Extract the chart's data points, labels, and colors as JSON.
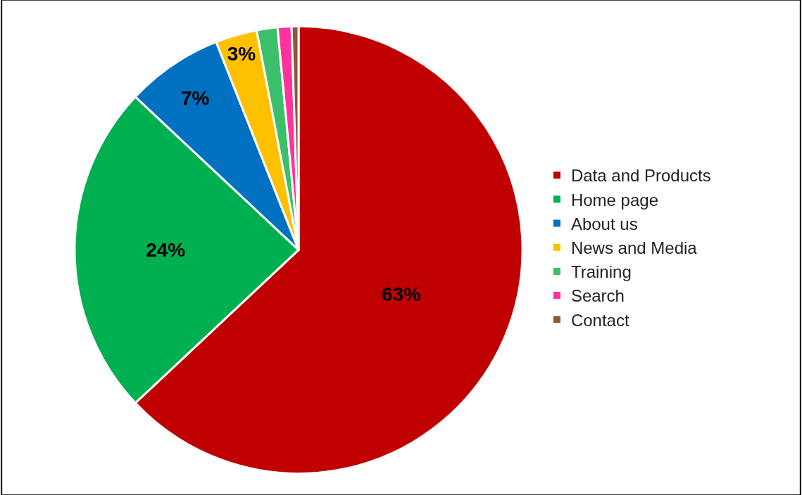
{
  "chart_data": {
    "type": "pie",
    "categories": [
      "Data and Products",
      "Home page",
      "About us",
      "News and Media",
      "Training",
      "Search",
      "Contact"
    ],
    "values": [
      63,
      24,
      7,
      3,
      1.5,
      1,
      0.5
    ],
    "colors": [
      "#c00000",
      "#00b050",
      "#0070c0",
      "#ffc000",
      "#3cbf6a",
      "#ff3399",
      "#8b5a3c"
    ],
    "value_labels": [
      "63%",
      "24%",
      "7%",
      "3%",
      null,
      null,
      null
    ],
    "legend": "right"
  }
}
